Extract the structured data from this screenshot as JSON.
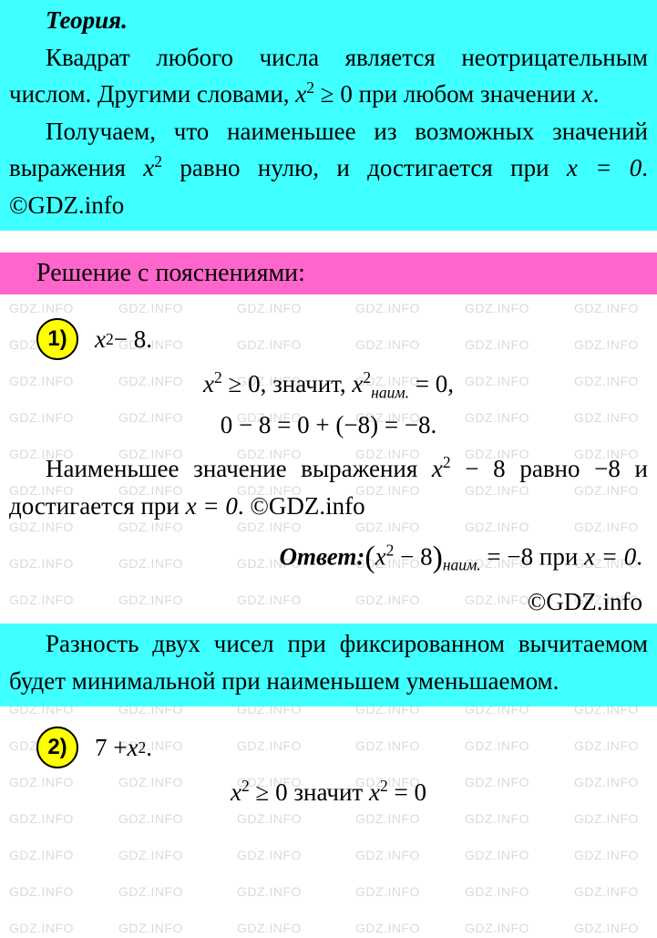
{
  "watermark": "GDZ.INFO",
  "colors": {
    "cyan": "#40ffff",
    "pink": "#ff66cc",
    "badge_fill": "#ffff00",
    "badge_border": "#000000",
    "wm_color": "rgba(150,150,150,0.35)"
  },
  "theory": {
    "title": "Теория.",
    "p1_a": "Квадрат любого числа является неотрицательным числом. Другими словами, ",
    "p1_math": "x",
    "p1_exp": "2",
    "p1_geq": " ≥ 0",
    "p1_b": " при любом значении ",
    "p1_var": "x",
    "p1_c": ".",
    "p2_a": "Получаем, что наименьшее из возможных значений выражения ",
    "p2_var": "x",
    "p2_exp": "2",
    "p2_b": " равно нулю, и достигается при ",
    "p2_eq": "x = 0",
    "p2_c": ". ©GDZ.info"
  },
  "solution_header": "Решение с пояснениями:",
  "item1": {
    "badge": "1)",
    "expr_x": "x",
    "expr_exp": "2",
    "expr_tail": " − 8.",
    "line2_a": "x",
    "line2_exp": "2",
    "line2_geq": " ≥ 0,",
    "line2_txt": " значит, ",
    "line2_b": "x",
    "line2_exp2": "2",
    "line2_sub": "наим.",
    "line2_eq": " = 0,",
    "line3": "0 − 8 = 0 + (−8) = −8.",
    "explain_a": "Наименьшее значение выражения ",
    "explain_expr_x": "x",
    "explain_exp": "2",
    "explain_b": " − 8 равно −8 и достигается при ",
    "explain_eq": "x = 0",
    "explain_c": ". ©GDZ.info",
    "answer_label": "Ответ:",
    "answer_x": "x",
    "answer_exp": "2",
    "answer_minus": " − 8",
    "answer_sub": "наим.",
    "answer_eq": " = −8",
    "answer_txt": " при ",
    "answer_x0": "x = 0",
    "answer_dot": ".",
    "copyright": "©GDZ.info"
  },
  "note": {
    "text": "Разность двух чисел при фиксированном вычитаемом будет минимальной при наименьшем уменьшаемом."
  },
  "item2": {
    "badge": "2)",
    "expr_a": "7 + ",
    "expr_x": "x",
    "expr_exp": "2",
    "expr_dot": ".",
    "line2_a": "x",
    "line2_exp": "2",
    "line2_geq": " ≥ 0",
    "line2_txt": " значит ",
    "line2_b": "x",
    "line2_exp2": "2",
    "line2_eq": " = 0"
  }
}
